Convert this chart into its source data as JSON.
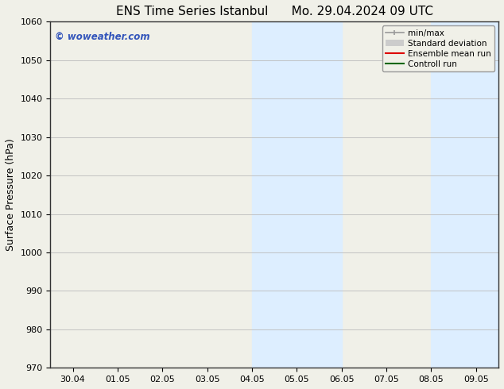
{
  "title_left": "ENS Time Series Istanbul",
  "title_right": "Mo. 29.04.2024 09 UTC",
  "ylabel": "Surface Pressure (hPa)",
  "ylim": [
    970,
    1060
  ],
  "yticks": [
    970,
    980,
    990,
    1000,
    1010,
    1020,
    1030,
    1040,
    1050,
    1060
  ],
  "xtick_labels": [
    "30.04",
    "01.05",
    "02.05",
    "03.05",
    "04.05",
    "05.05",
    "06.05",
    "07.05",
    "08.05",
    "09.05"
  ],
  "shaded_color": "#ddeeff",
  "watermark_text": "© woweather.com",
  "watermark_color": "#3355bb",
  "background_color": "#f0f0e8",
  "plot_bg_color": "#f0f0e8",
  "grid_color": "#bbbbbb",
  "spine_color": "#333333",
  "tick_fontsize": 8,
  "label_fontsize": 9,
  "title_fontsize": 11
}
